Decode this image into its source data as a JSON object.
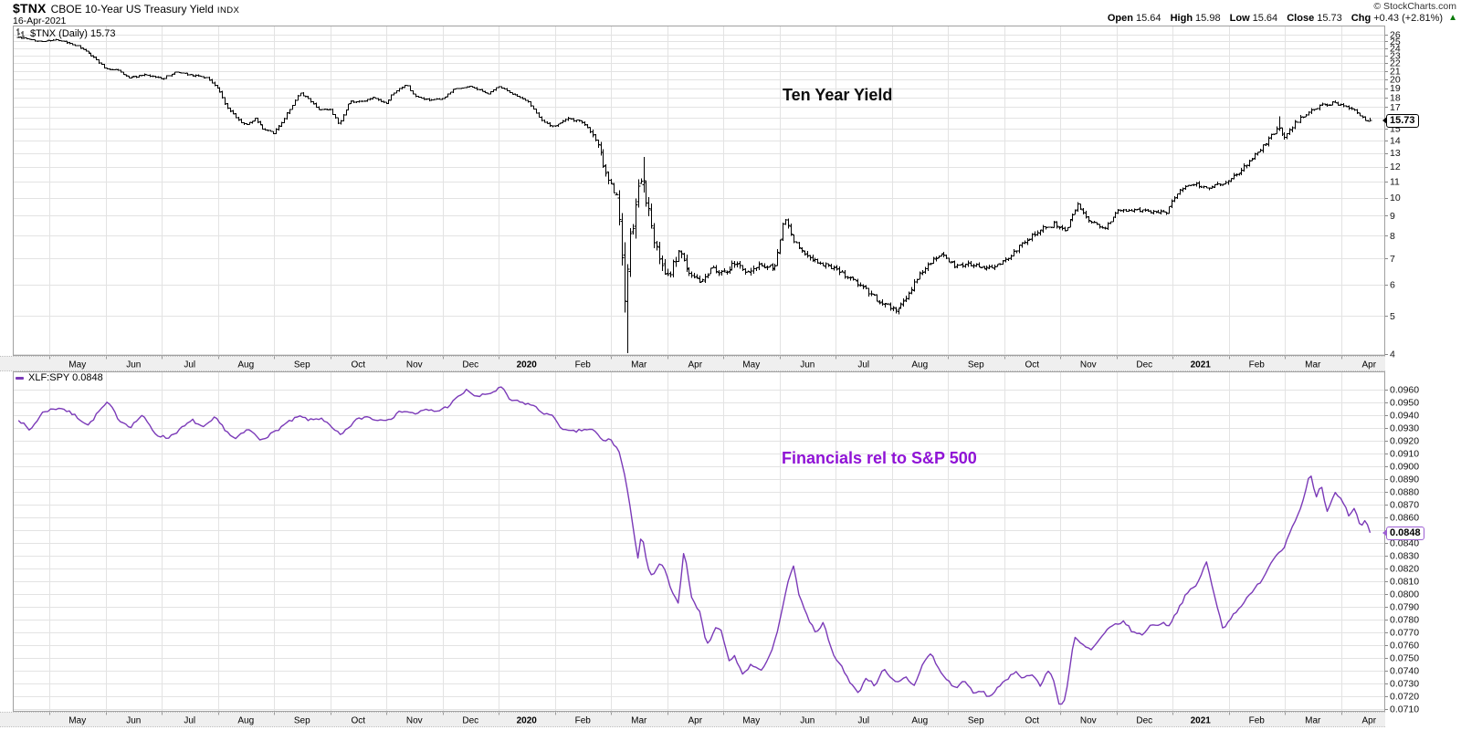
{
  "header": {
    "symbol": "$TNX",
    "name": "CBOE 10-Year US Treasury Yield",
    "exchange": "INDX",
    "date": "16-Apr-2021",
    "copyright": "© StockCharts.com",
    "quote": {
      "open_label": "Open",
      "open": "15.64",
      "high_label": "High",
      "high": "15.98",
      "low_label": "Low",
      "low": "15.64",
      "close_label": "Close",
      "close": "15.73",
      "chg_label": "Chg",
      "chg": "+0.43 (+2.81%)",
      "up_arrow": "▲"
    }
  },
  "top_chart": {
    "legend_label": "$TNX (Daily) 15.73",
    "title": "Ten Year Yield",
    "last_price": "15.73"
  },
  "bottom_chart": {
    "legend_label": "XLF:SPY 0.0848",
    "title": "Financials rel to S&P 500",
    "last_price": "0.0848"
  },
  "colors": {
    "bar_black": "#000000",
    "line_purple": "#7b3ab8",
    "title_purple": "#9013d6",
    "box_border_purple": "#9d5fd3",
    "green": "#0a7a0a",
    "grid": "#e3e3e3",
    "border": "#a0a0a0",
    "strip_bg": "#efefef",
    "strip_edge": "#bbbbbb"
  },
  "chart_data": [
    {
      "type": "ohlc",
      "symbol": "$TNX",
      "period": "Daily",
      "title": "Ten Year Yield",
      "scale": "log",
      "y_domain": [
        4,
        26
      ],
      "y_ticks": [
        4,
        5,
        6,
        7,
        8,
        9,
        10,
        11,
        12,
        13,
        14,
        15,
        16,
        17,
        18,
        19,
        20,
        21,
        22,
        23,
        24,
        25,
        26
      ],
      "x_tick_labels": [
        "May",
        "Jun",
        "Jul",
        "Aug",
        "Sep",
        "Oct",
        "Nov",
        "Dec",
        "2020",
        "Feb",
        "Mar",
        "Apr",
        "May",
        "Jun",
        "Jul",
        "Aug",
        "Sep",
        "Oct",
        "Nov",
        "Dec",
        "2021",
        "Feb",
        "Mar",
        "Apr"
      ],
      "x_tick_bold_indices": [
        8,
        20
      ],
      "x_domain_months": [
        -0.55,
        23.52
      ],
      "bar_count": 505,
      "seed": 42,
      "last_value": 15.73,
      "last_bar": {
        "open": 15.64,
        "high": 15.98,
        "low": 15.64,
        "close": 15.73
      },
      "waypoints": [
        [
          -0.55,
          25.6
        ],
        [
          -0.2,
          25.0
        ],
        [
          0.15,
          25.2
        ],
        [
          0.5,
          24.3
        ],
        [
          0.8,
          22.7
        ],
        [
          1.0,
          21.3
        ],
        [
          1.2,
          21.2
        ],
        [
          1.4,
          20.2
        ],
        [
          1.7,
          20.5
        ],
        [
          2.0,
          20.1
        ],
        [
          2.25,
          20.9
        ],
        [
          2.5,
          20.6
        ],
        [
          2.8,
          20.2
        ],
        [
          3.0,
          18.9
        ],
        [
          3.15,
          17.1
        ],
        [
          3.35,
          15.8
        ],
        [
          3.5,
          15.3
        ],
        [
          3.65,
          15.9
        ],
        [
          3.8,
          15.0
        ],
        [
          4.0,
          14.6
        ],
        [
          4.15,
          15.7
        ],
        [
          4.45,
          18.4
        ],
        [
          4.6,
          17.9
        ],
        [
          4.8,
          16.8
        ],
        [
          5.0,
          16.7
        ],
        [
          5.15,
          15.4
        ],
        [
          5.35,
          17.6
        ],
        [
          5.55,
          17.5
        ],
        [
          5.75,
          18.0
        ],
        [
          6.0,
          17.3
        ],
        [
          6.1,
          18.3
        ],
        [
          6.35,
          19.4
        ],
        [
          6.5,
          18.1
        ],
        [
          6.75,
          17.7
        ],
        [
          7.0,
          17.8
        ],
        [
          7.2,
          18.9
        ],
        [
          7.5,
          19.2
        ],
        [
          7.8,
          18.4
        ],
        [
          8.0,
          19.2
        ],
        [
          8.2,
          18.5
        ],
        [
          8.5,
          17.7
        ],
        [
          8.8,
          15.5
        ],
        [
          9.0,
          15.2
        ],
        [
          9.2,
          15.9
        ],
        [
          9.5,
          15.6
        ],
        [
          9.75,
          13.8
        ],
        [
          9.9,
          11.6
        ],
        [
          10.1,
          10.0
        ],
        [
          10.25,
          5.4
        ],
        [
          10.35,
          7.9
        ],
        [
          10.55,
          11.5
        ],
        [
          10.7,
          8.5
        ],
        [
          10.85,
          7.0
        ],
        [
          11.0,
          6.2
        ],
        [
          11.2,
          7.3
        ],
        [
          11.4,
          6.4
        ],
        [
          11.6,
          6.1
        ],
        [
          11.8,
          6.6
        ],
        [
          12.0,
          6.4
        ],
        [
          12.2,
          6.8
        ],
        [
          12.4,
          6.5
        ],
        [
          12.6,
          6.7
        ],
        [
          12.9,
          6.6
        ],
        [
          13.1,
          8.9
        ],
        [
          13.25,
          7.7
        ],
        [
          13.5,
          7.1
        ],
        [
          13.75,
          6.8
        ],
        [
          14.0,
          6.6
        ],
        [
          14.25,
          6.2
        ],
        [
          14.5,
          5.9
        ],
        [
          14.75,
          5.5
        ],
        [
          15.1,
          5.2
        ],
        [
          15.3,
          5.7
        ],
        [
          15.6,
          6.7
        ],
        [
          15.9,
          7.2
        ],
        [
          16.1,
          6.7
        ],
        [
          16.4,
          6.8
        ],
        [
          16.7,
          6.6
        ],
        [
          17.0,
          6.9
        ],
        [
          17.3,
          7.6
        ],
        [
          17.6,
          8.2
        ],
        [
          17.9,
          8.6
        ],
        [
          18.1,
          8.2
        ],
        [
          18.3,
          9.6
        ],
        [
          18.5,
          8.7
        ],
        [
          18.8,
          8.4
        ],
        [
          19.0,
          9.2
        ],
        [
          19.3,
          9.3
        ],
        [
          19.6,
          9.2
        ],
        [
          19.9,
          9.2
        ],
        [
          20.1,
          10.4
        ],
        [
          20.35,
          10.9
        ],
        [
          20.6,
          10.6
        ],
        [
          20.9,
          10.9
        ],
        [
          21.2,
          11.6
        ],
        [
          21.5,
          13.0
        ],
        [
          21.8,
          14.6
        ],
        [
          21.87,
          15.2
        ],
        [
          22.0,
          14.2
        ],
        [
          22.2,
          15.6
        ],
        [
          22.4,
          16.4
        ],
        [
          22.6,
          17.1
        ],
        [
          22.85,
          17.4
        ],
        [
          23.1,
          17.0
        ],
        [
          23.25,
          16.6
        ],
        [
          23.42,
          15.7
        ],
        [
          23.52,
          15.73
        ]
      ],
      "volatility": [
        [
          -0.55,
          0.008
        ],
        [
          3.0,
          0.012
        ],
        [
          4.5,
          0.012
        ],
        [
          8.0,
          0.008
        ],
        [
          9.5,
          0.015
        ],
        [
          10.0,
          0.05
        ],
        [
          10.25,
          0.16
        ],
        [
          10.5,
          0.12
        ],
        [
          10.8,
          0.07
        ],
        [
          11.2,
          0.05
        ],
        [
          12.0,
          0.035
        ],
        [
          13.0,
          0.035
        ],
        [
          14.0,
          0.03
        ],
        [
          15.0,
          0.035
        ],
        [
          16.0,
          0.025
        ],
        [
          17.0,
          0.025
        ],
        [
          18.0,
          0.03
        ],
        [
          19.0,
          0.02
        ],
        [
          20.0,
          0.02
        ],
        [
          21.0,
          0.025
        ],
        [
          22.0,
          0.025
        ],
        [
          23.0,
          0.018
        ],
        [
          23.52,
          0.012
        ]
      ],
      "extremes": [
        {
          "m": 10.27,
          "low": 4.02
        },
        {
          "m": 10.56,
          "high": 12.7
        },
        {
          "m": 21.88,
          "high": 16.1
        }
      ]
    },
    {
      "type": "line",
      "symbol": "XLF:SPY",
      "title": "Financials rel to S&P 500",
      "scale": "linear",
      "y_domain": [
        0.071,
        0.096
      ],
      "y_ticks": [
        0.071,
        0.072,
        0.073,
        0.074,
        0.075,
        0.076,
        0.077,
        0.078,
        0.079,
        0.08,
        0.081,
        0.082,
        0.083,
        0.084,
        0.085,
        0.086,
        0.087,
        0.088,
        0.089,
        0.09,
        0.091,
        0.092,
        0.093,
        0.094,
        0.095,
        0.096
      ],
      "x_tick_labels": [
        "May",
        "Jun",
        "Jul",
        "Aug",
        "Sep",
        "Oct",
        "Nov",
        "Dec",
        "2020",
        "Feb",
        "Mar",
        "Apr",
        "May",
        "Jun",
        "Jul",
        "Aug",
        "Sep",
        "Oct",
        "Nov",
        "Dec",
        "2021",
        "Feb",
        "Mar",
        "Apr"
      ],
      "x_tick_bold_indices": [
        8,
        20
      ],
      "x_domain_months": [
        -0.55,
        23.52
      ],
      "point_count": 505,
      "seed": 7,
      "noise": 0.00012,
      "last_value": 0.0848,
      "waypoints": [
        [
          -0.55,
          0.0937
        ],
        [
          -0.35,
          0.0928
        ],
        [
          -0.1,
          0.0943
        ],
        [
          0.2,
          0.0946
        ],
        [
          0.45,
          0.094
        ],
        [
          0.7,
          0.0932
        ],
        [
          0.9,
          0.0944
        ],
        [
          1.05,
          0.095
        ],
        [
          1.25,
          0.0936
        ],
        [
          1.45,
          0.0931
        ],
        [
          1.65,
          0.094
        ],
        [
          1.9,
          0.0925
        ],
        [
          2.1,
          0.0922
        ],
        [
          2.3,
          0.0928
        ],
        [
          2.55,
          0.0936
        ],
        [
          2.75,
          0.093
        ],
        [
          2.95,
          0.0938
        ],
        [
          3.15,
          0.0928
        ],
        [
          3.3,
          0.0921
        ],
        [
          3.55,
          0.0929
        ],
        [
          3.75,
          0.0921
        ],
        [
          3.95,
          0.0925
        ],
        [
          4.2,
          0.0933
        ],
        [
          4.45,
          0.0939
        ],
        [
          4.65,
          0.0936
        ],
        [
          4.85,
          0.0938
        ],
        [
          5.05,
          0.0929
        ],
        [
          5.2,
          0.0924
        ],
        [
          5.45,
          0.0936
        ],
        [
          5.65,
          0.0939
        ],
        [
          5.85,
          0.0936
        ],
        [
          6.1,
          0.0938
        ],
        [
          6.3,
          0.0944
        ],
        [
          6.5,
          0.0941
        ],
        [
          6.7,
          0.0944
        ],
        [
          6.9,
          0.0943
        ],
        [
          7.1,
          0.0947
        ],
        [
          7.3,
          0.0955
        ],
        [
          7.45,
          0.096
        ],
        [
          7.6,
          0.0954
        ],
        [
          7.75,
          0.0956
        ],
        [
          7.9,
          0.0958
        ],
        [
          8.05,
          0.0962
        ],
        [
          8.2,
          0.0952
        ],
        [
          8.4,
          0.095
        ],
        [
          8.6,
          0.0948
        ],
        [
          8.75,
          0.0943
        ],
        [
          9.0,
          0.0938
        ],
        [
          9.15,
          0.0928
        ],
        [
          9.35,
          0.0927
        ],
        [
          9.55,
          0.0929
        ],
        [
          9.7,
          0.0928
        ],
        [
          9.85,
          0.092
        ],
        [
          10.0,
          0.0921
        ],
        [
          10.15,
          0.0911
        ],
        [
          10.25,
          0.0892
        ],
        [
          10.4,
          0.0852
        ],
        [
          10.48,
          0.0828
        ],
        [
          10.55,
          0.0849
        ],
        [
          10.65,
          0.082
        ],
        [
          10.75,
          0.0813
        ],
        [
          10.85,
          0.0824
        ],
        [
          10.95,
          0.082
        ],
        [
          11.1,
          0.08
        ],
        [
          11.2,
          0.0792
        ],
        [
          11.3,
          0.0835
        ],
        [
          11.45,
          0.0795
        ],
        [
          11.6,
          0.0785
        ],
        [
          11.7,
          0.0759
        ],
        [
          11.85,
          0.0772
        ],
        [
          11.95,
          0.0775
        ],
        [
          12.1,
          0.0747
        ],
        [
          12.2,
          0.0752
        ],
        [
          12.35,
          0.0737
        ],
        [
          12.5,
          0.0745
        ],
        [
          12.65,
          0.074
        ],
        [
          12.8,
          0.0748
        ],
        [
          12.95,
          0.0767
        ],
        [
          13.1,
          0.08
        ],
        [
          13.25,
          0.0823
        ],
        [
          13.35,
          0.08
        ],
        [
          13.5,
          0.0782
        ],
        [
          13.65,
          0.077
        ],
        [
          13.8,
          0.0778
        ],
        [
          13.95,
          0.0752
        ],
        [
          14.1,
          0.0744
        ],
        [
          14.25,
          0.0732
        ],
        [
          14.4,
          0.0722
        ],
        [
          14.55,
          0.0735
        ],
        [
          14.7,
          0.0728
        ],
        [
          14.85,
          0.0742
        ],
        [
          14.95,
          0.0735
        ],
        [
          15.1,
          0.073
        ],
        [
          15.25,
          0.0735
        ],
        [
          15.4,
          0.0728
        ],
        [
          15.55,
          0.0745
        ],
        [
          15.7,
          0.0754
        ],
        [
          15.85,
          0.074
        ],
        [
          16.0,
          0.0732
        ],
        [
          16.15,
          0.0726
        ],
        [
          16.3,
          0.0733
        ],
        [
          16.45,
          0.0722
        ],
        [
          16.6,
          0.0724
        ],
        [
          16.75,
          0.0719
        ],
        [
          16.9,
          0.0728
        ],
        [
          17.05,
          0.0732
        ],
        [
          17.2,
          0.074
        ],
        [
          17.35,
          0.0734
        ],
        [
          17.5,
          0.0738
        ],
        [
          17.65,
          0.0728
        ],
        [
          17.8,
          0.0741
        ],
        [
          17.9,
          0.073
        ],
        [
          18.0,
          0.0711
        ],
        [
          18.1,
          0.072
        ],
        [
          18.25,
          0.0766
        ],
        [
          18.4,
          0.076
        ],
        [
          18.55,
          0.0756
        ],
        [
          18.7,
          0.0764
        ],
        [
          18.85,
          0.0772
        ],
        [
          19.0,
          0.0777
        ],
        [
          19.15,
          0.0778
        ],
        [
          19.3,
          0.077
        ],
        [
          19.45,
          0.0768
        ],
        [
          19.6,
          0.0775
        ],
        [
          19.8,
          0.0777
        ],
        [
          19.95,
          0.0776
        ],
        [
          20.1,
          0.0788
        ],
        [
          20.25,
          0.08
        ],
        [
          20.45,
          0.0808
        ],
        [
          20.6,
          0.0826
        ],
        [
          20.75,
          0.0798
        ],
        [
          20.9,
          0.0773
        ],
        [
          21.05,
          0.0782
        ],
        [
          21.2,
          0.079
        ],
        [
          21.4,
          0.08
        ],
        [
          21.6,
          0.0812
        ],
        [
          21.8,
          0.0828
        ],
        [
          22.0,
          0.0838
        ],
        [
          22.15,
          0.0855
        ],
        [
          22.3,
          0.0868
        ],
        [
          22.45,
          0.0895
        ],
        [
          22.55,
          0.0875
        ],
        [
          22.65,
          0.0885
        ],
        [
          22.75,
          0.0863
        ],
        [
          22.9,
          0.088
        ],
        [
          23.05,
          0.0871
        ],
        [
          23.15,
          0.0861
        ],
        [
          23.25,
          0.0868
        ],
        [
          23.35,
          0.0852
        ],
        [
          23.45,
          0.0858
        ],
        [
          23.52,
          0.0848
        ]
      ]
    }
  ]
}
